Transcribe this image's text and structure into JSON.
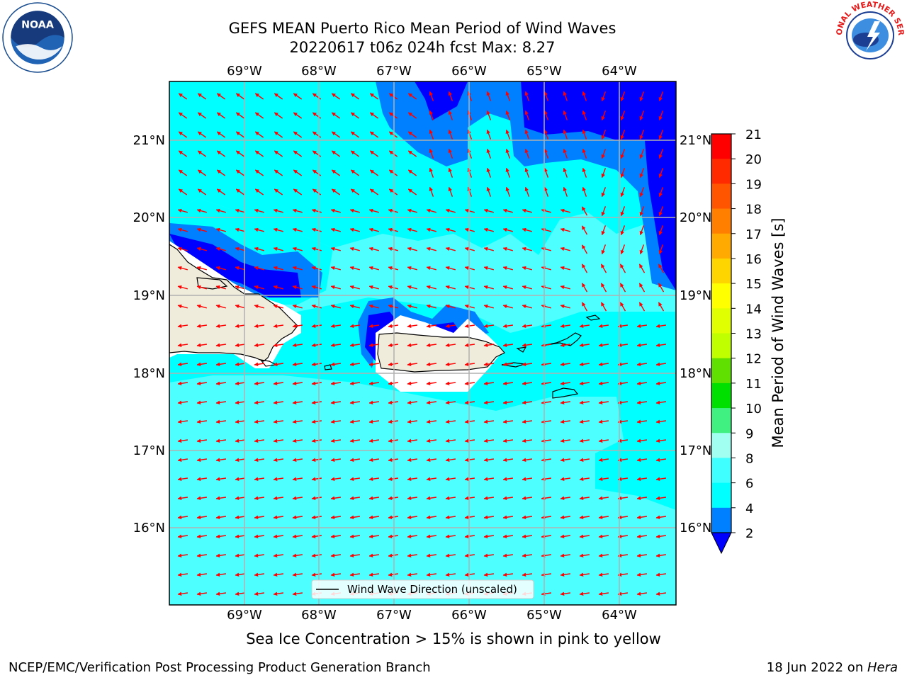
{
  "header": {
    "title_line1": "GEFS MEAN Puerto Rico Mean Period of Wind Waves",
    "title_line2": "20220617 t06z 024h fcst   Max: 8.27"
  },
  "logos": {
    "left": {
      "name": "NOAA",
      "icon": "noaa-logo"
    },
    "right": {
      "name": "NATIONAL WEATHER SERVICE",
      "icon": "nws-logo"
    }
  },
  "map": {
    "lon_labels": [
      "69°W",
      "68°W",
      "67°W",
      "66°W",
      "65°W",
      "64°W"
    ],
    "lat_labels": [
      "21°N",
      "20°N",
      "19°N",
      "18°N",
      "17°N",
      "16°N"
    ],
    "lon_range": [
      -69.99,
      -63.25
    ],
    "lat_range": [
      15.0,
      21.75
    ],
    "legend_label": "Wind Wave Direction (unscaled)",
    "colors": {
      "land": "#efecdc",
      "arrow": "#ff0000",
      "grid": "#b0b0b0"
    }
  },
  "colorbar": {
    "title": "Mean Period of Wind Waves [s]",
    "ticks": [
      "21",
      "20",
      "19",
      "18",
      "17",
      "16",
      "15",
      "14",
      "13",
      "12",
      "11",
      "10",
      "9",
      "8",
      "6",
      "4",
      "2"
    ],
    "colors": [
      "#ff0000",
      "#ff2500",
      "#ff4b00",
      "#ff7100",
      "#ff9600",
      "#ffbc00",
      "#ffe100",
      "#ffff00",
      "#e1ff00",
      "#c6ff00",
      "#8eff00",
      "#3bff00",
      "#00ff00",
      "#4dff8e",
      "#a5ffff",
      "#4dffff",
      "#00ffff",
      "#007fff",
      "#0000ff"
    ],
    "extend_color": "#0000ff"
  },
  "footer": {
    "sea_ice_note": "Sea Ice Concentration > 15% is shown in pink to yellow",
    "credit": "NCEP/EMC/Verification Post Processing Product Generation Branch",
    "date_text": "18 Jun 2022 on ",
    "machine": "Hera"
  }
}
